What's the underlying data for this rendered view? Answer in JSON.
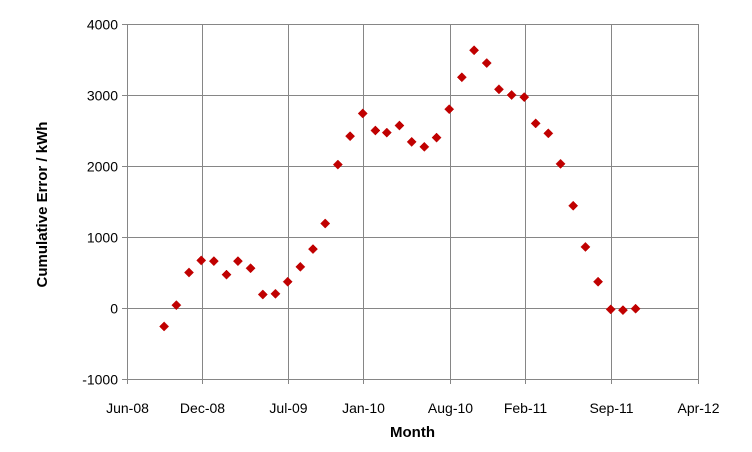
{
  "chart_data": {
    "type": "scatter",
    "title": "",
    "xlabel": "Month",
    "ylabel": "Cumulative Error / kWh",
    "xlim": [
      "2008-06-01",
      "2012-04-01"
    ],
    "ylim": [
      -1000,
      4000
    ],
    "grid": true,
    "legend": "none",
    "marker": "diamond",
    "colors": {
      "marker": "#C00000",
      "grid": "#868686",
      "text": "#000000"
    },
    "x_ticks": [
      {
        "date": "2008-06-01",
        "label": "Jun-08"
      },
      {
        "date": "2008-12-01",
        "label": "Dec-08"
      },
      {
        "date": "2009-07-01",
        "label": "Jul-09"
      },
      {
        "date": "2010-01-01",
        "label": "Jan-10"
      },
      {
        "date": "2010-08-01",
        "label": "Aug-10"
      },
      {
        "date": "2011-02-01",
        "label": "Feb-11"
      },
      {
        "date": "2011-09-01",
        "label": "Sep-11"
      },
      {
        "date": "2012-04-01",
        "label": "Apr-12"
      }
    ],
    "y_ticks": [
      {
        "value": -1000,
        "label": "-1000"
      },
      {
        "value": 0,
        "label": "0"
      },
      {
        "value": 1000,
        "label": "1000"
      },
      {
        "value": 2000,
        "label": "2000"
      },
      {
        "value": 3000,
        "label": "3000"
      },
      {
        "value": 4000,
        "label": "4000"
      }
    ],
    "series": [
      {
        "name": "Cumulative Error",
        "points": [
          {
            "x": "2008-08-31",
            "y": -260
          },
          {
            "x": "2008-09-30",
            "y": 40
          },
          {
            "x": "2008-10-31",
            "y": 500
          },
          {
            "x": "2008-11-30",
            "y": 670
          },
          {
            "x": "2008-12-31",
            "y": 660
          },
          {
            "x": "2009-01-31",
            "y": 470
          },
          {
            "x": "2009-02-28",
            "y": 660
          },
          {
            "x": "2009-03-31",
            "y": 560
          },
          {
            "x": "2009-04-30",
            "y": 190
          },
          {
            "x": "2009-05-31",
            "y": 200
          },
          {
            "x": "2009-06-30",
            "y": 370
          },
          {
            "x": "2009-07-31",
            "y": 580
          },
          {
            "x": "2009-08-31",
            "y": 830
          },
          {
            "x": "2009-09-30",
            "y": 1190
          },
          {
            "x": "2009-10-31",
            "y": 2020
          },
          {
            "x": "2009-11-30",
            "y": 2420
          },
          {
            "x": "2009-12-31",
            "y": 2740
          },
          {
            "x": "2010-01-31",
            "y": 2500
          },
          {
            "x": "2010-02-28",
            "y": 2470
          },
          {
            "x": "2010-03-31",
            "y": 2570
          },
          {
            "x": "2010-04-30",
            "y": 2340
          },
          {
            "x": "2010-05-31",
            "y": 2270
          },
          {
            "x": "2010-06-30",
            "y": 2400
          },
          {
            "x": "2010-07-31",
            "y": 2800
          },
          {
            "x": "2010-08-31",
            "y": 3250
          },
          {
            "x": "2010-09-30",
            "y": 3630
          },
          {
            "x": "2010-10-31",
            "y": 3450
          },
          {
            "x": "2010-11-30",
            "y": 3080
          },
          {
            "x": "2010-12-31",
            "y": 3000
          },
          {
            "x": "2011-01-31",
            "y": 2970
          },
          {
            "x": "2011-02-28",
            "y": 2600
          },
          {
            "x": "2011-03-31",
            "y": 2460
          },
          {
            "x": "2011-04-30",
            "y": 2030
          },
          {
            "x": "2011-05-31",
            "y": 1440
          },
          {
            "x": "2011-06-30",
            "y": 860
          },
          {
            "x": "2011-07-31",
            "y": 370
          },
          {
            "x": "2011-08-31",
            "y": -20
          },
          {
            "x": "2011-09-30",
            "y": -30
          },
          {
            "x": "2011-10-31",
            "y": -10
          }
        ]
      }
    ]
  }
}
